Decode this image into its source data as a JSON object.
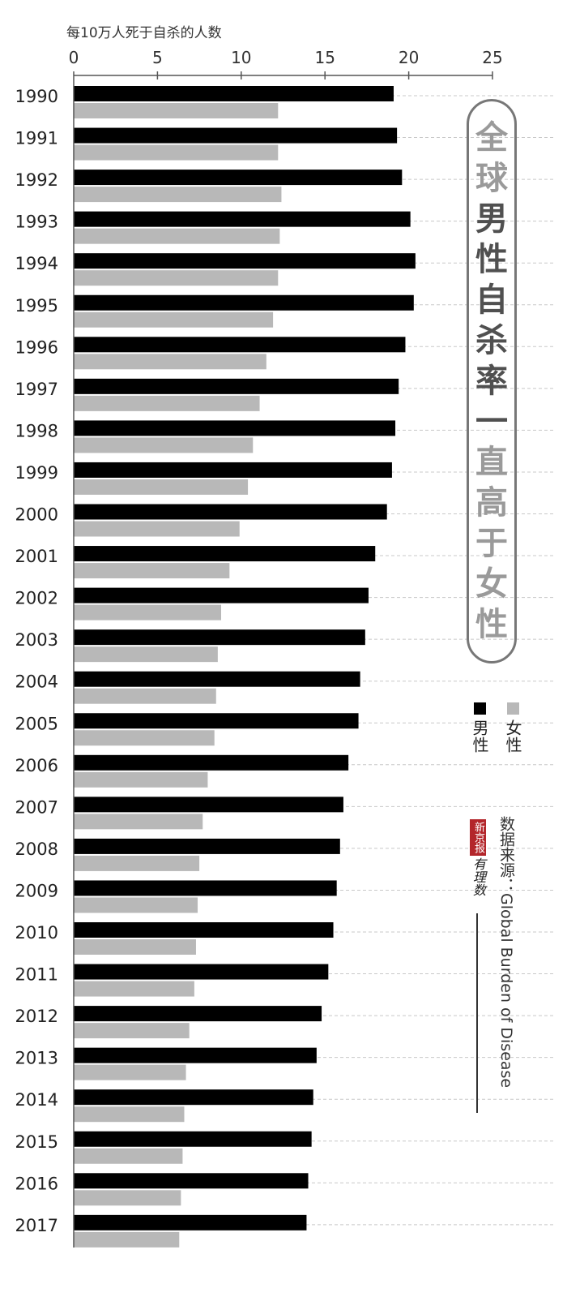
{
  "chart_data": {
    "type": "bar",
    "orientation": "horizontal",
    "unit_label": "每10万人死于自杀的人数",
    "title": "全球男性自杀率一直高于女性",
    "title_chars": [
      {
        "ch": "全",
        "color": "#9a9a9a"
      },
      {
        "ch": "球",
        "color": "#9a9a9a"
      },
      {
        "ch": "男",
        "color": "#505050"
      },
      {
        "ch": "性",
        "color": "#505050"
      },
      {
        "ch": "自",
        "color": "#505050"
      },
      {
        "ch": "杀",
        "color": "#505050"
      },
      {
        "ch": "率",
        "color": "#505050"
      },
      {
        "ch": "一",
        "color": "#505050"
      },
      {
        "ch": "直",
        "color": "#9a9a9a"
      },
      {
        "ch": "高",
        "color": "#9a9a9a"
      },
      {
        "ch": "于",
        "color": "#9a9a9a"
      },
      {
        "ch": "女",
        "color": "#9a9a9a"
      },
      {
        "ch": "性",
        "color": "#9a9a9a"
      }
    ],
    "categories": [
      "1990",
      "1991",
      "1992",
      "1993",
      "1994",
      "1995",
      "1996",
      "1997",
      "1998",
      "1999",
      "2000",
      "2001",
      "2002",
      "2003",
      "2004",
      "2005",
      "2006",
      "2007",
      "2008",
      "2009",
      "2010",
      "2011",
      "2012",
      "2013",
      "2014",
      "2015",
      "2016",
      "2017"
    ],
    "series": [
      {
        "name": "男性",
        "color": "#000000",
        "values": [
          19.1,
          19.3,
          19.6,
          20.1,
          20.4,
          20.3,
          19.8,
          19.4,
          19.2,
          19.0,
          18.7,
          18.0,
          17.6,
          17.4,
          17.1,
          17.0,
          16.4,
          16.1,
          15.9,
          15.7,
          15.5,
          15.2,
          14.8,
          14.5,
          14.3,
          14.2,
          14.0,
          13.9
        ]
      },
      {
        "name": "女性",
        "color": "#b8b8b8",
        "values": [
          12.2,
          12.2,
          12.4,
          12.3,
          12.2,
          11.9,
          11.5,
          11.1,
          10.7,
          10.4,
          9.9,
          9.3,
          8.8,
          8.6,
          8.5,
          8.4,
          8.0,
          7.7,
          7.5,
          7.4,
          7.3,
          7.2,
          6.9,
          6.7,
          6.6,
          6.5,
          6.4,
          6.3
        ]
      }
    ],
    "xlim": [
      0,
      25
    ],
    "x_ticks": [
      0,
      5,
      10,
      15,
      20,
      25
    ],
    "grid": "dashed horizontal lines",
    "legend_placement": "right",
    "source": "数据来源：Global Burden of Disease",
    "publisher_logo_text": "新京报",
    "publisher_logo_script": "有理数"
  }
}
